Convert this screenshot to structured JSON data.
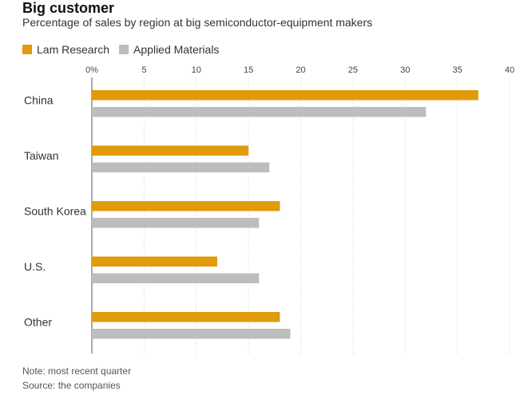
{
  "title": "Big customer",
  "subtitle": "Percentage of sales by region at big semiconductor-equipment makers",
  "note": "Note: most recent quarter",
  "source": "Source: the companies",
  "colors": {
    "lam": "#e09a0a",
    "applied": "#bdbdbd",
    "grid": "#e2e2e2",
    "axis": "#555555"
  },
  "chart_data": {
    "type": "bar",
    "orientation": "horizontal",
    "categories": [
      "China",
      "Taiwan",
      "South Korea",
      "U.S.",
      "Other"
    ],
    "series": [
      {
        "name": "Lam Research",
        "values": [
          37,
          15,
          18,
          12,
          18
        ]
      },
      {
        "name": "Applied Materials",
        "values": [
          32,
          17,
          16,
          16,
          19
        ]
      }
    ],
    "xlim": [
      0,
      40
    ],
    "ticks": [
      "0%",
      "5",
      "10",
      "15",
      "20",
      "25",
      "30",
      "35",
      "40"
    ],
    "tick_values": [
      0,
      5,
      10,
      15,
      20,
      25,
      30,
      35,
      40
    ],
    "grid": true,
    "legend": "top-left"
  }
}
